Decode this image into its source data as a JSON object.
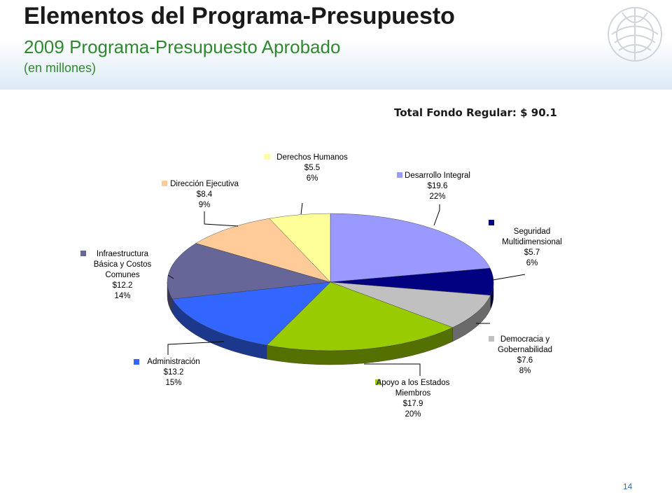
{
  "header": {
    "title": "Elementos del Programa-Presupuesto",
    "subtitle": "2009 Programa-Presupuesto Aprobado",
    "unit": "(en millones)"
  },
  "total_label": "Total Fondo Regular: $ 90.1",
  "page_number": "14",
  "chart_data": {
    "type": "pie",
    "title": "",
    "three_d": true,
    "slices": [
      {
        "label": [
          "Desarrollo Integral"
        ],
        "value": 19.6,
        "value_label": "$19.6",
        "percent": "22%",
        "color": "#9999ff"
      },
      {
        "label": [
          "Seguridad",
          "Multidimensional"
        ],
        "value": 5.7,
        "value_label": "$5.7",
        "percent": "6%",
        "color": "#000080"
      },
      {
        "label": [
          "Democracia y",
          "Gobernabilidad"
        ],
        "value": 7.6,
        "value_label": "$7.6",
        "percent": "8%",
        "color": "#c0c0c0"
      },
      {
        "label": [
          "Apoyo a los Estados",
          "Miembros"
        ],
        "value": 17.9,
        "value_label": "$17.9",
        "percent": "20%",
        "color": "#99cc00"
      },
      {
        "label": [
          "Administración"
        ],
        "value": 13.2,
        "value_label": "$13.2",
        "percent": "15%",
        "color": "#3366ff"
      },
      {
        "label": [
          "Infraestructura",
          "Básica y Costos",
          "Comunes"
        ],
        "value": 12.2,
        "value_label": "$12.2",
        "percent": "14%",
        "color": "#666699"
      },
      {
        "label": [
          "Dirección Ejecutiva"
        ],
        "value": 8.4,
        "value_label": "$8.4",
        "percent": "9%",
        "color": "#ffcc99"
      },
      {
        "label": [
          "Derechos Humanos"
        ],
        "value": 5.5,
        "value_label": "$5.5",
        "percent": "6%",
        "color": "#ffff99"
      }
    ]
  }
}
